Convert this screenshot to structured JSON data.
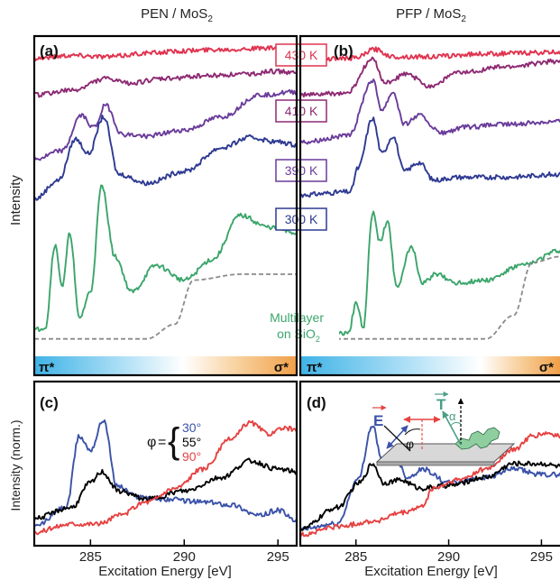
{
  "figure": {
    "col_titles": {
      "left": "PEN / MoS",
      "right": "PFP / MoS",
      "sub": "2"
    },
    "y_label_top": "Intensity",
    "y_label_bottom": "Intensity (norm.)",
    "x_label": "Excitation Energy [eV]",
    "pi_label": "π*",
    "sigma_label": "σ*",
    "colors": {
      "k430": "#e0334f",
      "k410": "#8e2a73",
      "k390": "#6a3c9b",
      "k300": "#2e3a92",
      "multilayer": "#3ba56b",
      "edge": "#8a8a8a",
      "phi30": "#3a52a8",
      "phi55": "#000000",
      "phi90": "#e64242",
      "pi_band": "#3fb3e6",
      "sigma_band": "#f0a04a",
      "tilt": "#4a9e86"
    },
    "angles": {
      "symbol": "φ",
      "30": "30°",
      "55": "55°",
      "90": "90°"
    },
    "inset": {
      "E": "E",
      "T": "T",
      "phi": "φ",
      "alpha": "α"
    }
  },
  "chart_data": [
    {
      "panel": "(a)",
      "type": "line",
      "title": "PEN / MoS2",
      "xlim": [
        282,
        296
      ],
      "ylabel": "Intensity",
      "temperature_labels": [
        "430 K",
        "410 K",
        "390 K",
        "300 K"
      ],
      "series": [
        {
          "name": "430 K",
          "x": [
            282,
            284,
            286,
            288,
            290,
            292,
            294,
            296
          ],
          "y": [
            9.55,
            9.65,
            9.6,
            9.72,
            9.8,
            9.85,
            9.88,
            9.9
          ]
        },
        {
          "name": "410 K",
          "x": [
            282,
            284,
            285.8,
            287,
            289,
            291,
            293,
            295,
            296
          ],
          "y": [
            8.3,
            8.45,
            8.85,
            8.7,
            8.85,
            8.95,
            9.0,
            9.1,
            9.05
          ]
        },
        {
          "name": "390 K",
          "x": [
            282,
            283.5,
            284.5,
            285.2,
            285.8,
            286.7,
            288,
            290,
            292,
            294,
            296
          ],
          "y": [
            6.1,
            6.4,
            7.6,
            7.2,
            7.95,
            6.95,
            6.9,
            7.1,
            7.55,
            8.3,
            8.4
          ]
        },
        {
          "name": "300 K",
          "x": [
            282,
            283.3,
            284.2,
            284.9,
            285.7,
            286.5,
            288,
            290,
            292,
            293.5,
            295,
            296
          ],
          "y": [
            4.75,
            5.4,
            6.8,
            6.3,
            7.55,
            5.6,
            5.3,
            5.7,
            6.5,
            6.85,
            6.7,
            6.6
          ]
        },
        {
          "name": "Multilayer on SiO2",
          "x": [
            282,
            282.6,
            283.1,
            283.5,
            283.9,
            284.4,
            285.0,
            285.6,
            286.3,
            287.2,
            288.5,
            290,
            291.5,
            293,
            294.5,
            296
          ],
          "y": [
            0.3,
            0.4,
            3.2,
            1.8,
            3.6,
            0.7,
            1.6,
            5.2,
            2.8,
            1.6,
            2.5,
            2.0,
            2.7,
            4.2,
            3.8,
            3.6
          ]
        },
        {
          "name": "Absorption edge",
          "x": [
            282,
            288,
            289.5,
            290.5,
            293,
            296
          ],
          "y": [
            0,
            0,
            0.5,
            2.0,
            2.2,
            2.2
          ]
        }
      ]
    },
    {
      "panel": "(b)",
      "type": "line",
      "title": "PFP / MoS2",
      "xlim": [
        282,
        296
      ],
      "legend_label": "Multilayer on SiO2",
      "series": [
        {
          "name": "430 K",
          "x": [
            282,
            285,
            286,
            287,
            289,
            292,
            296
          ],
          "y": [
            9.5,
            9.55,
            9.85,
            9.6,
            9.6,
            9.7,
            9.75
          ]
        },
        {
          "name": "410 K",
          "x": [
            282,
            284.5,
            285.9,
            286.6,
            287.7,
            289,
            290.5,
            293,
            296
          ],
          "y": [
            8.3,
            8.35,
            9.5,
            8.7,
            9.0,
            8.6,
            9.05,
            9.25,
            9.45
          ]
        },
        {
          "name": "390 K",
          "x": [
            282,
            284.6,
            285.9,
            286.4,
            287.0,
            287.6,
            288.4,
            289.6,
            291,
            293,
            296
          ],
          "y": [
            6.7,
            6.9,
            8.8,
            7.8,
            8.4,
            7.3,
            7.6,
            7.0,
            7.2,
            7.3,
            7.4
          ]
        },
        {
          "name": "300 K",
          "x": [
            282,
            284.7,
            285.1,
            285.9,
            286.4,
            287.0,
            287.6,
            288.4,
            289.2,
            290.5,
            293,
            296
          ],
          "y": [
            4.9,
            5.0,
            5.8,
            7.5,
            6.3,
            6.9,
            5.7,
            6.0,
            5.4,
            5.5,
            5.5,
            5.6
          ]
        },
        {
          "name": "Multilayer on SiO2",
          "x": [
            282,
            284.6,
            285.0,
            285.4,
            285.9,
            286.3,
            286.7,
            287.2,
            288.0,
            288.6,
            289.3,
            290.5,
            292,
            294,
            296
          ],
          "y": [
            0.1,
            0.2,
            1.2,
            0.4,
            4.3,
            3.3,
            4.0,
            1.8,
            3.1,
            1.9,
            2.2,
            1.9,
            2.0,
            2.5,
            3.0
          ]
        },
        {
          "name": "Absorption edge",
          "x": [
            282,
            292,
            293.5,
            294.5,
            296
          ],
          "y": [
            0,
            0,
            0.8,
            2.6,
            2.8
          ]
        }
      ]
    },
    {
      "panel": "(c)",
      "type": "line",
      "xlabel": "Excitation Energy [eV]",
      "ylabel": "Intensity (norm.)",
      "xlim": [
        282,
        296
      ],
      "x_ticks": [
        285,
        290,
        295
      ],
      "series": [
        {
          "name": "φ = 30°",
          "x": [
            282,
            283.7,
            284.4,
            285.0,
            285.7,
            286.4,
            287.5,
            289,
            291,
            292.5,
            294,
            295,
            296
          ],
          "y": [
            0.15,
            0.5,
            1.8,
            1.55,
            2.1,
            0.9,
            0.7,
            0.65,
            0.6,
            0.55,
            0.35,
            0.45,
            0.25
          ]
        },
        {
          "name": "φ = 55°",
          "x": [
            282,
            284,
            285.0,
            285.6,
            286.5,
            288,
            290,
            292,
            293.5,
            295,
            296
          ],
          "y": [
            0.3,
            0.5,
            0.95,
            1.15,
            0.8,
            0.65,
            0.8,
            1.05,
            1.35,
            1.2,
            1.15
          ]
        },
        {
          "name": "φ = 90°",
          "x": [
            282,
            284,
            285.5,
            286.5,
            288,
            289.5,
            291,
            292.5,
            293.5,
            294.5,
            295.5,
            296
          ],
          "y": [
            0.05,
            0.2,
            0.2,
            0.35,
            0.6,
            0.85,
            1.2,
            1.75,
            2.05,
            1.85,
            1.95,
            1.9
          ]
        }
      ]
    },
    {
      "panel": "(d)",
      "type": "line",
      "xlabel": "Excitation Energy [eV]",
      "xlim": [
        282,
        296
      ],
      "x_ticks": [
        285,
        290,
        295
      ],
      "series": [
        {
          "name": "φ = 30°",
          "x": [
            282,
            284,
            285.1,
            285.9,
            286.4,
            287.0,
            287.8,
            288.6,
            290,
            292,
            293.5,
            295,
            296
          ],
          "y": [
            0.1,
            0.2,
            1.0,
            2.0,
            1.35,
            1.5,
            1.05,
            1.2,
            0.95,
            1.05,
            1.2,
            1.1,
            1.1
          ]
        },
        {
          "name": "φ = 55°",
          "x": [
            282,
            284,
            285.2,
            285.9,
            286.5,
            287.4,
            288.5,
            290,
            292,
            293.5,
            295,
            296
          ],
          "y": [
            0.1,
            0.5,
            0.95,
            1.3,
            0.95,
            1.0,
            0.85,
            0.9,
            1.05,
            1.3,
            1.3,
            1.25
          ]
        },
        {
          "name": "φ = 90°",
          "x": [
            282,
            284,
            286,
            287.5,
            288.5,
            289.2,
            290.5,
            292,
            293.5,
            294.5,
            295.3,
            296
          ],
          "y": [
            0.0,
            0.15,
            0.25,
            0.4,
            0.5,
            0.85,
            1.0,
            1.2,
            1.55,
            1.8,
            1.85,
            1.8
          ]
        }
      ]
    }
  ]
}
